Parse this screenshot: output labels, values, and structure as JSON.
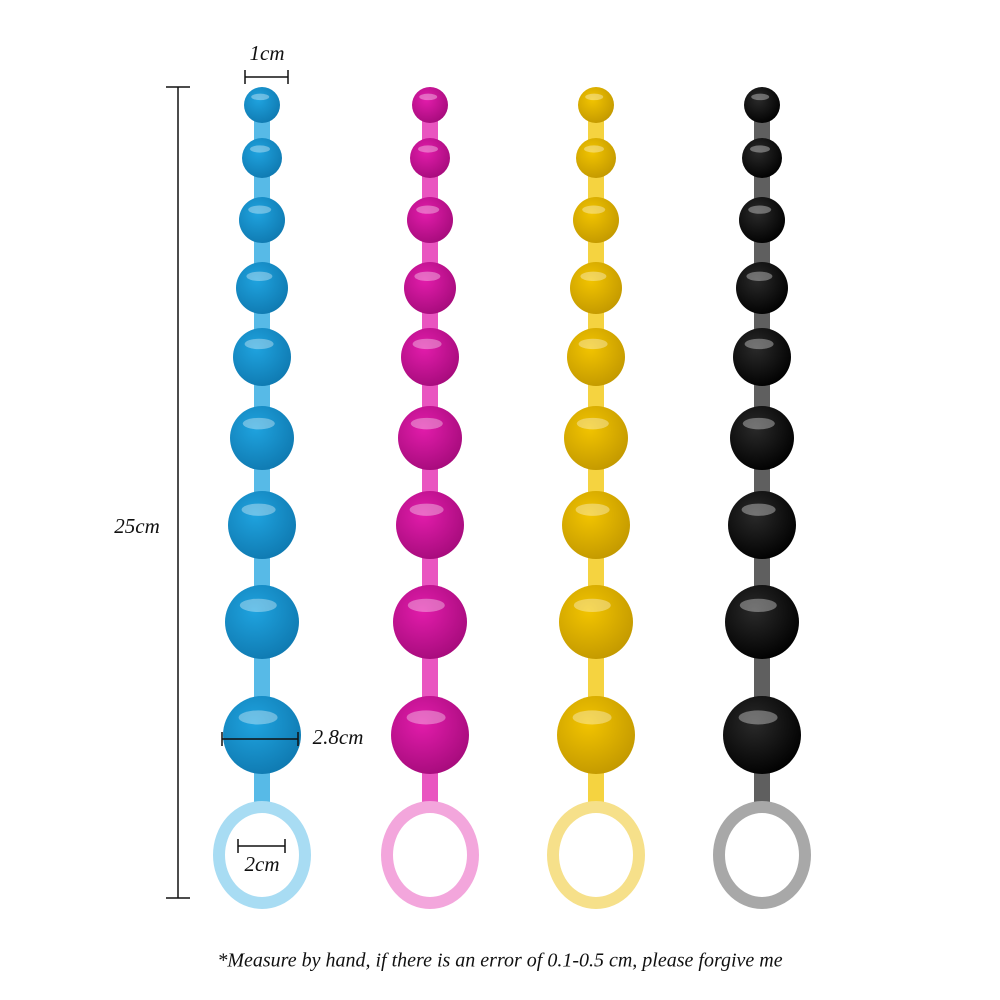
{
  "dimensions": {
    "top_width": "1cm",
    "length": "25cm",
    "bead_width": "2.8cm",
    "ring_width": "2cm"
  },
  "note": "*Measure by hand, if there is an error of 0.1-0.5 cm, please forgive me"
}
